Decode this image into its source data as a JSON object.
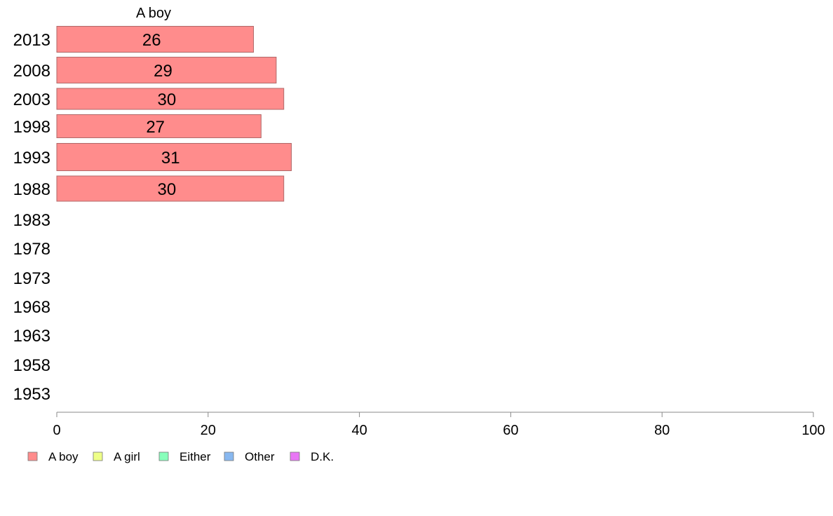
{
  "chart_data": {
    "type": "bar",
    "orientation": "horizontal",
    "title": "",
    "xlabel": "",
    "ylabel": "",
    "series_title": "A boy",
    "categories": [
      "2013",
      "2008",
      "2003",
      "1998",
      "1993",
      "1988",
      "1983",
      "1978",
      "1973",
      "1968",
      "1963",
      "1958",
      "1953"
    ],
    "series": [
      {
        "name": "A boy",
        "values": [
          26,
          29,
          30,
          27,
          31,
          30,
          null,
          null,
          null,
          null,
          null,
          null,
          null
        ]
      }
    ],
    "data_labels": [
      "26",
      "29",
      "30",
      "27",
      "31",
      "30",
      "",
      "",
      "",
      "",
      "",
      "",
      ""
    ],
    "xlim": [
      0,
      100
    ],
    "xticks": [
      0,
      20,
      40,
      60,
      80,
      100
    ],
    "grid": false,
    "legend_position": "bottom-left",
    "legend": [
      {
        "name": "A boy",
        "color": "#ff8c8c"
      },
      {
        "name": "A girl",
        "color": "#eeff88"
      },
      {
        "name": "Either",
        "color": "#88ffbb"
      },
      {
        "name": "Other",
        "color": "#88b8f0"
      },
      {
        "name": "D.K.",
        "color": "#e877f5"
      }
    ],
    "bar_color": "#ff8c8c",
    "bar_border_color": "#b06868",
    "axis_color": "#888888"
  }
}
